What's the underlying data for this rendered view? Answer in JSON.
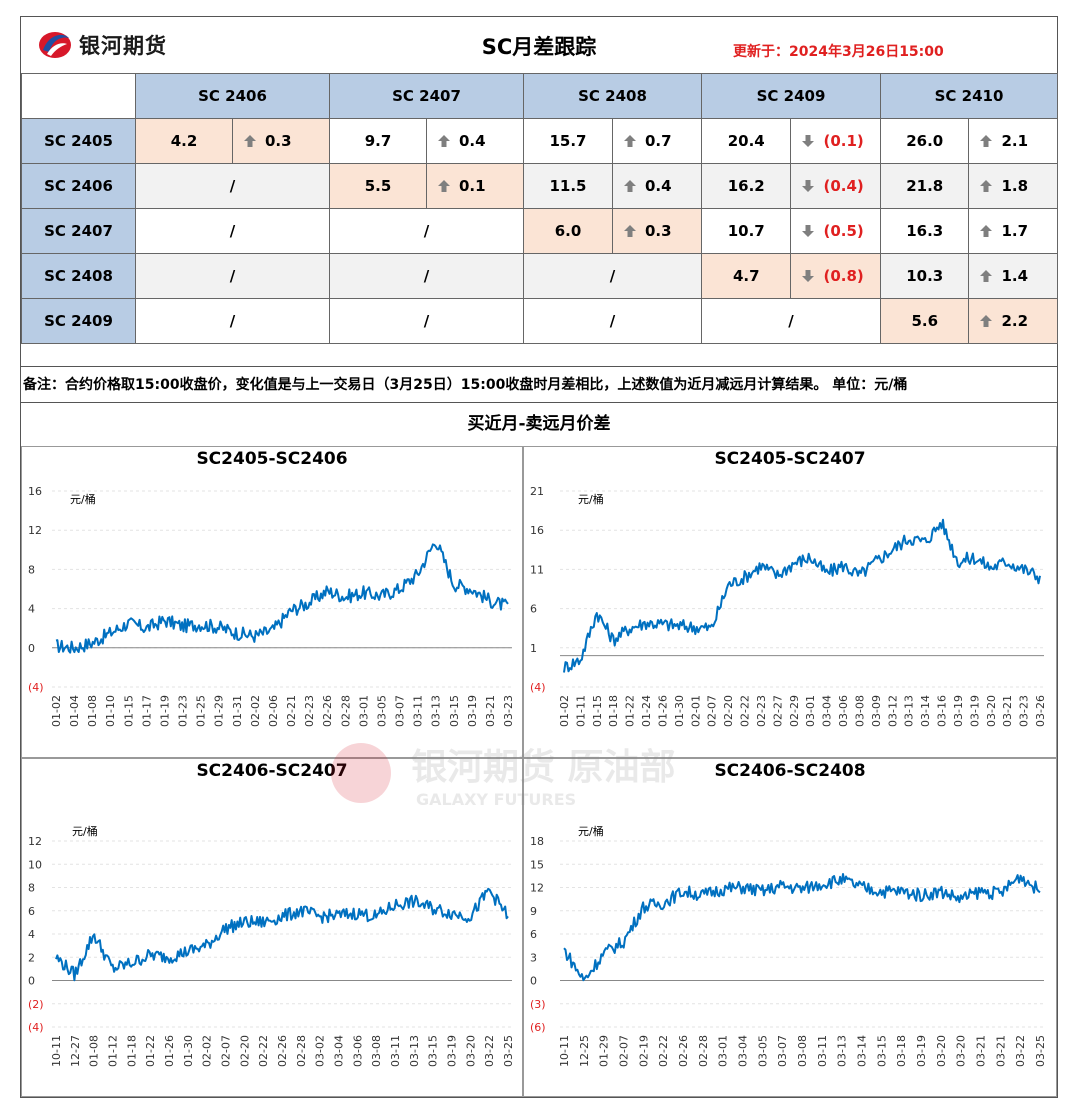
{
  "header": {
    "logo_text": "银河期货",
    "title": "SC月差跟踪",
    "update": "更新于：2024年3月26日15:00"
  },
  "matrix": {
    "columns": [
      "SC 2406",
      "SC 2407",
      "SC 2408",
      "SC 2409",
      "SC 2410"
    ],
    "rows": [
      {
        "label": "SC 2405",
        "cells": [
          {
            "value": "4.2",
            "change": "0.3",
            "dir": "up"
          },
          {
            "value": "9.7",
            "change": "0.4",
            "dir": "up"
          },
          {
            "value": "15.7",
            "change": "0.7",
            "dir": "up"
          },
          {
            "value": "20.4",
            "change": "(0.1)",
            "dir": "down"
          },
          {
            "value": "26.0",
            "change": "2.1",
            "dir": "up"
          }
        ]
      },
      {
        "label": "SC 2406",
        "cells": [
          {
            "na": "/"
          },
          {
            "value": "5.5",
            "change": "0.1",
            "dir": "up"
          },
          {
            "value": "11.5",
            "change": "0.4",
            "dir": "up"
          },
          {
            "value": "16.2",
            "change": "(0.4)",
            "dir": "down"
          },
          {
            "value": "21.8",
            "change": "1.8",
            "dir": "up"
          }
        ]
      },
      {
        "label": "SC 2407",
        "cells": [
          {
            "na": "/"
          },
          {
            "na": "/"
          },
          {
            "value": "6.0",
            "change": "0.3",
            "dir": "up"
          },
          {
            "value": "10.7",
            "change": "(0.5)",
            "dir": "down"
          },
          {
            "value": "16.3",
            "change": "1.7",
            "dir": "up"
          }
        ]
      },
      {
        "label": "SC 2408",
        "cells": [
          {
            "na": "/"
          },
          {
            "na": "/"
          },
          {
            "na": "/"
          },
          {
            "value": "4.7",
            "change": "(0.8)",
            "dir": "down"
          },
          {
            "value": "10.3",
            "change": "1.4",
            "dir": "up"
          }
        ]
      },
      {
        "label": "SC 2409",
        "cells": [
          {
            "na": "/"
          },
          {
            "na": "/"
          },
          {
            "na": "/"
          },
          {
            "na": "/"
          },
          {
            "value": "5.6",
            "change": "2.2",
            "dir": "up"
          }
        ]
      }
    ]
  },
  "note": "备注：合约价格取15:00收盘价，变化值是与上一交易日（3月25日）15:00收盘时月差相比，上述数值为近月减远月计算结果。  单位：元/桶",
  "section_title": "买近月-卖远月价差",
  "watermark": {
    "text": "银河期货 原油部",
    "sub": "GALAXY FUTURES"
  },
  "colors": {
    "line": "#0070c0",
    "header_fill": "#b8cce4",
    "diag_fill": "#fbe4d5",
    "negative": "#e02020"
  },
  "chart_data": [
    {
      "type": "line",
      "title": "SC2405-SC2406",
      "unit": "元/桶",
      "y_ticks": [
        "16",
        "12",
        "8",
        "4",
        "0",
        "(4)"
      ],
      "ylim": [
        -4,
        16
      ],
      "x_ticks": [
        "01-02",
        "01-04",
        "01-08",
        "01-10",
        "01-15",
        "01-17",
        "01-19",
        "01-23",
        "01-25",
        "01-29",
        "01-31",
        "02-02",
        "02-06",
        "02-21",
        "02-23",
        "02-26",
        "02-28",
        "03-01",
        "03-05",
        "03-07",
        "03-11",
        "03-13",
        "03-15",
        "03-19",
        "03-21",
        "03-23"
      ],
      "series": [
        {
          "values": [
            0.2,
            0.0,
            0.5,
            1.5,
            2.5,
            2.0,
            2.8,
            2.2,
            2.4,
            2.1,
            1.5,
            1.2,
            1.8,
            3.8,
            4.6,
            5.8,
            5.2,
            5.6,
            5.3,
            6.0,
            7.5,
            11.0,
            6.5,
            6.0,
            4.8,
            4.2
          ]
        }
      ]
    },
    {
      "type": "line",
      "title": "SC2405-SC2407",
      "unit": "元/桶",
      "y_ticks": [
        "21",
        "16",
        "11",
        "6",
        "1",
        "(4)"
      ],
      "ylim": [
        -4,
        21
      ],
      "x_ticks": [
        "01-02",
        "01-11",
        "01-15",
        "01-18",
        "01-22",
        "01-24",
        "01-26",
        "01-30",
        "02-01",
        "02-07",
        "02-20",
        "02-22",
        "02-23",
        "02-27",
        "02-29",
        "03-01",
        "03-04",
        "03-06",
        "03-08",
        "03-09",
        "03-12",
        "03-13",
        "03-14",
        "03-16",
        "03-19",
        "03-19",
        "03-20",
        "03-21",
        "03-23",
        "03-26"
      ],
      "series": [
        {
          "values": [
            -1.5,
            -0.5,
            5.5,
            2.0,
            3.5,
            4.2,
            4.0,
            3.8,
            3.6,
            3.5,
            9.0,
            10.0,
            11.5,
            10.2,
            11.8,
            12.5,
            10.5,
            11.5,
            10.2,
            12.0,
            13.5,
            15.0,
            14.5,
            17.0,
            12.0,
            12.5,
            11.2,
            12.0,
            11.0,
            10.0
          ]
        }
      ]
    },
    {
      "type": "line",
      "title": "SC2406-SC2407",
      "unit": "元/桶",
      "y_ticks": [
        "12",
        "10",
        "8",
        "6",
        "4",
        "2",
        "0",
        "(2)",
        "(4)"
      ],
      "ylim": [
        -4,
        12
      ],
      "x_ticks": [
        "10-11",
        "12-27",
        "01-08",
        "01-12",
        "01-18",
        "01-22",
        "01-26",
        "01-30",
        "02-02",
        "02-07",
        "02-20",
        "02-22",
        "02-26",
        "02-28",
        "03-02",
        "03-04",
        "03-06",
        "03-08",
        "03-11",
        "03-13",
        "03-15",
        "03-19",
        "03-20",
        "03-22",
        "03-25"
      ],
      "series": [
        {
          "values": [
            2.0,
            0.5,
            4.0,
            1.0,
            1.5,
            2.2,
            2.0,
            2.5,
            3.0,
            4.5,
            5.0,
            5.0,
            5.5,
            6.0,
            5.5,
            5.6,
            5.8,
            5.5,
            6.5,
            6.8,
            6.2,
            5.8,
            5.5,
            7.8,
            5.5
          ]
        }
      ]
    },
    {
      "type": "line",
      "title": "SC2406-SC2408",
      "unit": "元/桶",
      "y_ticks": [
        "18",
        "15",
        "12",
        "9",
        "6",
        "3",
        "0",
        "(3)",
        "(6)"
      ],
      "ylim": [
        -6,
        18
      ],
      "x_ticks": [
        "10-11",
        "12-25",
        "01-29",
        "02-07",
        "02-19",
        "02-22",
        "02-26",
        "02-28",
        "03-01",
        "03-04",
        "03-05",
        "03-07",
        "03-08",
        "03-11",
        "03-13",
        "03-14",
        "03-15",
        "03-18",
        "03-19",
        "03-20",
        "03-20",
        "03-21",
        "03-21",
        "03-22",
        "03-25"
      ],
      "series": [
        {
          "values": [
            4.0,
            0.0,
            3.5,
            5.0,
            9.5,
            10.0,
            11.5,
            11.0,
            11.8,
            12.0,
            11.5,
            12.2,
            11.8,
            12.5,
            13.0,
            12.0,
            11.5,
            11.5,
            11.0,
            11.5,
            10.5,
            11.5,
            11.2,
            13.5,
            11.5
          ]
        }
      ]
    }
  ]
}
